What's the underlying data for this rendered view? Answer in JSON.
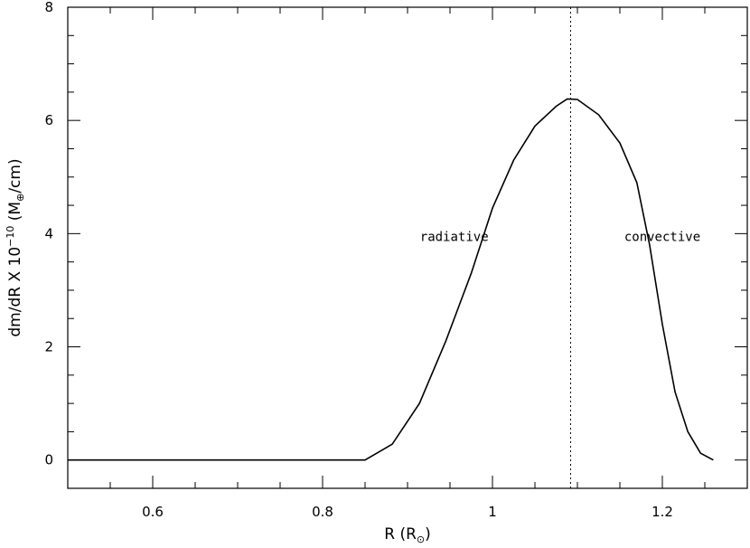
{
  "chart_data": {
    "type": "line",
    "title": "",
    "xlabel": {
      "main": "R",
      "paren_open": " (R",
      "subscript": "⊙",
      "paren_close": ")"
    },
    "ylabel": {
      "main": "dm/dR X 10",
      "exponent": "−10",
      "paren_open": " (M",
      "subscript": "⊕",
      "unit_tail": "/cm)"
    },
    "xlim": [
      0.5,
      1.3
    ],
    "ylim": [
      -0.5,
      8
    ],
    "x_ticks": [
      {
        "value": 0.6,
        "label": "0.6"
      },
      {
        "value": 0.8,
        "label": "0.8"
      },
      {
        "value": 1.0,
        "label": "1"
      },
      {
        "value": 1.2,
        "label": "1.2"
      }
    ],
    "y_ticks": [
      {
        "value": 0,
        "label": "0"
      },
      {
        "value": 2,
        "label": "2"
      },
      {
        "value": 4,
        "label": "4"
      },
      {
        "value": 6,
        "label": "6"
      },
      {
        "value": 8,
        "label": "8"
      }
    ],
    "x_minor_step": 0.05,
    "y_minor_step": 0.5,
    "grid": false,
    "divider_line": {
      "x": 1.092,
      "style": "dotted"
    },
    "annotations": [
      {
        "text": "radiative",
        "x": 0.955,
        "y": 3.95
      },
      {
        "text": "convective",
        "x": 1.2,
        "y": 3.95
      }
    ],
    "series": [
      {
        "x": [
          0.5,
          0.85,
          0.882,
          0.914,
          0.945,
          0.975,
          1.0,
          1.025,
          1.05,
          1.075,
          1.088,
          1.1,
          1.125,
          1.15,
          1.17,
          1.185,
          1.2,
          1.215,
          1.23,
          1.245,
          1.26
        ],
        "y": [
          0,
          0,
          0.28,
          1.0,
          2.1,
          3.3,
          4.45,
          5.3,
          5.9,
          6.25,
          6.38,
          6.37,
          6.1,
          5.6,
          4.9,
          3.8,
          2.4,
          1.2,
          0.5,
          0.12,
          0
        ]
      }
    ]
  }
}
